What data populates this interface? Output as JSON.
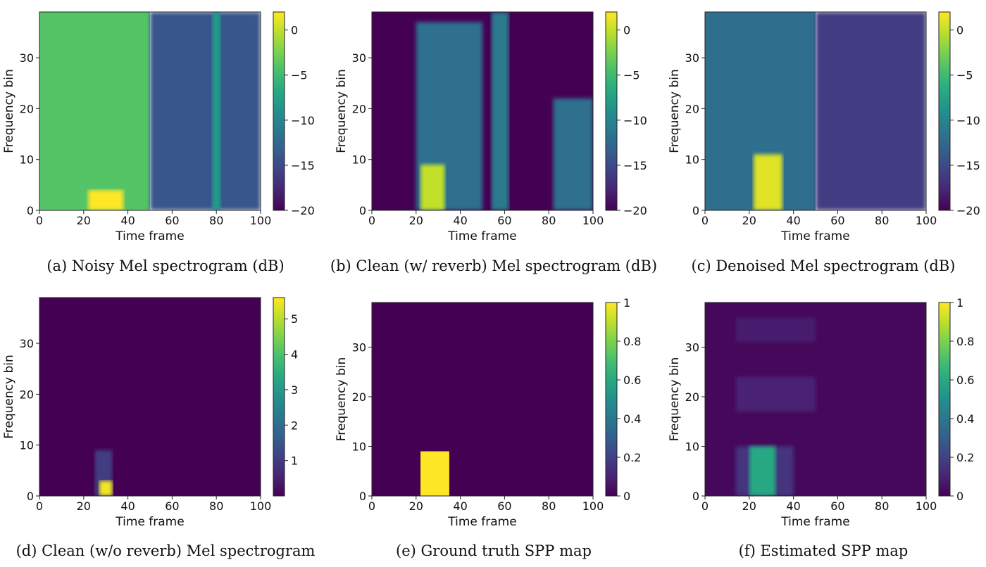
{
  "figure": {
    "panels": [
      {
        "caption": "(a) Noisy Mel spectrogram (dB)"
      },
      {
        "caption": "(b) Clean (w/ reverb) Mel spectrogram (dB)"
      },
      {
        "caption": "(c) Denoised Mel spectrogram (dB)"
      },
      {
        "caption": "(d) Clean (w/o reverb) Mel spectrogram"
      },
      {
        "caption": "(e) Ground truth SPP map"
      },
      {
        "caption": "(f) Estimated SPP map"
      }
    ]
  },
  "colormap": "viridis",
  "chart_data": [
    {
      "type": "heatmap",
      "title": "(a) Noisy Mel spectrogram (dB)",
      "xlabel": "Time frame",
      "ylabel": "Frequency bin",
      "xlim": [
        0,
        100
      ],
      "ylim": [
        0,
        39
      ],
      "xticks": [
        0,
        20,
        40,
        60,
        80,
        100
      ],
      "yticks": [
        0,
        10,
        20,
        30
      ],
      "colorbar": {
        "min": -20,
        "max": 2,
        "ticks": [
          0,
          -5,
          -10,
          -15,
          -20
        ]
      },
      "regions": [
        {
          "x": [
            0,
            50
          ],
          "y": [
            0,
            39
          ],
          "value": -4
        },
        {
          "x": [
            50,
            100
          ],
          "y": [
            0,
            39
          ],
          "value": -14
        },
        {
          "x": [
            22,
            38
          ],
          "y": [
            0,
            4
          ],
          "value": 2
        },
        {
          "x": [
            78,
            82
          ],
          "y": [
            0,
            39
          ],
          "value": -8
        }
      ]
    },
    {
      "type": "heatmap",
      "title": "(b) Clean (w/ reverb) Mel spectrogram (dB)",
      "xlabel": "Time frame",
      "ylabel": "Frequency bin",
      "xlim": [
        0,
        100
      ],
      "ylim": [
        0,
        39
      ],
      "xticks": [
        0,
        20,
        40,
        60,
        80,
        100
      ],
      "yticks": [
        0,
        10,
        20,
        30
      ],
      "colorbar": {
        "min": -20,
        "max": 2,
        "ticks": [
          0,
          -5,
          -10,
          -15,
          -20
        ]
      },
      "regions": [
        {
          "x": [
            0,
            100
          ],
          "y": [
            0,
            39
          ],
          "value": -20
        },
        {
          "x": [
            20,
            50
          ],
          "y": [
            0,
            37
          ],
          "value": -12
        },
        {
          "x": [
            22,
            33
          ],
          "y": [
            0,
            9
          ],
          "value": 0
        },
        {
          "x": [
            54,
            62
          ],
          "y": [
            0,
            39
          ],
          "value": -11
        },
        {
          "x": [
            82,
            100
          ],
          "y": [
            0,
            22
          ],
          "value": -12
        }
      ]
    },
    {
      "type": "heatmap",
      "title": "(c) Denoised Mel spectrogram (dB)",
      "xlabel": "Time frame",
      "ylabel": "Frequency bin",
      "xlim": [
        0,
        100
      ],
      "ylim": [
        0,
        39
      ],
      "xticks": [
        0,
        20,
        40,
        60,
        80,
        100
      ],
      "yticks": [
        0,
        10,
        20,
        30
      ],
      "colorbar": {
        "min": -20,
        "max": 2,
        "ticks": [
          0,
          -5,
          -10,
          -15,
          -20
        ]
      },
      "regions": [
        {
          "x": [
            0,
            50
          ],
          "y": [
            0,
            39
          ],
          "value": -12
        },
        {
          "x": [
            50,
            100
          ],
          "y": [
            0,
            39
          ],
          "value": -16
        },
        {
          "x": [
            22,
            35
          ],
          "y": [
            0,
            11
          ],
          "value": 1
        }
      ]
    },
    {
      "type": "heatmap",
      "title": "(d) Clean (w/o reverb) Mel spectrogram",
      "xlabel": "Time frame",
      "ylabel": "Frequency bin",
      "xlim": [
        0,
        100
      ],
      "ylim": [
        0,
        39
      ],
      "xticks": [
        0,
        20,
        40,
        60,
        80,
        100
      ],
      "yticks": [
        0,
        10,
        20,
        30
      ],
      "colorbar": {
        "min": 0,
        "max": 5.6,
        "ticks": [
          5,
          4,
          3,
          2,
          1
        ]
      },
      "regions": [
        {
          "x": [
            0,
            100
          ],
          "y": [
            0,
            39
          ],
          "value": 0
        },
        {
          "x": [
            25,
            33
          ],
          "y": [
            0,
            9
          ],
          "value": 1
        },
        {
          "x": [
            27,
            33
          ],
          "y": [
            0,
            3
          ],
          "value": 5.5
        }
      ]
    },
    {
      "type": "heatmap",
      "title": "(e) Ground truth SPP map",
      "xlabel": "Time frame",
      "ylabel": "Frequency bin",
      "xlim": [
        0,
        100
      ],
      "ylim": [
        0,
        39
      ],
      "xticks": [
        0,
        20,
        40,
        60,
        80,
        100
      ],
      "yticks": [
        0,
        10,
        20,
        30
      ],
      "colorbar": {
        "min": 0,
        "max": 1,
        "ticks": [
          1.0,
          0.8,
          0.6,
          0.4,
          0.2,
          0.0
        ]
      },
      "regions": [
        {
          "x": [
            0,
            100
          ],
          "y": [
            0,
            39
          ],
          "value": 0
        },
        {
          "x": [
            22,
            35
          ],
          "y": [
            0,
            9
          ],
          "value": 1
        }
      ]
    },
    {
      "type": "heatmap",
      "title": "(f) Estimated SPP map",
      "xlabel": "Time frame",
      "ylabel": "Frequency bin",
      "xlim": [
        0,
        100
      ],
      "ylim": [
        0,
        39
      ],
      "xticks": [
        0,
        20,
        40,
        60,
        80,
        100
      ],
      "yticks": [
        0,
        10,
        20,
        30
      ],
      "colorbar": {
        "min": 0,
        "max": 1,
        "ticks": [
          1.0,
          0.8,
          0.6,
          0.4,
          0.2,
          0.0
        ]
      },
      "regions": [
        {
          "x": [
            0,
            100
          ],
          "y": [
            0,
            39
          ],
          "value": 0.02
        },
        {
          "x": [
            14,
            50
          ],
          "y": [
            17,
            24
          ],
          "value": 0.1
        },
        {
          "x": [
            14,
            50
          ],
          "y": [
            31,
            36
          ],
          "value": 0.08
        },
        {
          "x": [
            14,
            40
          ],
          "y": [
            0,
            10
          ],
          "value": 0.15
        },
        {
          "x": [
            20,
            32
          ],
          "y": [
            0,
            10
          ],
          "value": 0.6
        }
      ]
    }
  ]
}
